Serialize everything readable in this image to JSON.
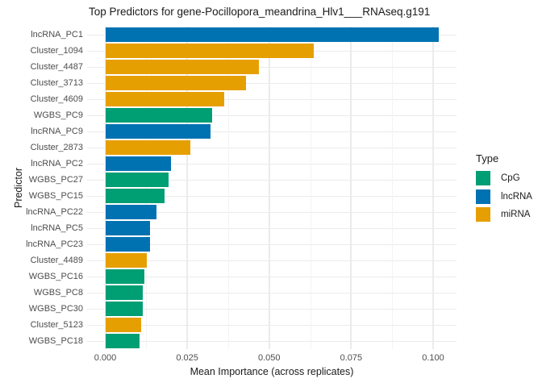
{
  "title": "Top Predictors for gene-Pocillopora_meandrina_Hlv1___RNAseq.g191",
  "chart_data": {
    "type": "bar",
    "orientation": "horizontal",
    "title": "Top Predictors for gene-Pocillopora_meandrina_Hlv1___RNAseq.g191",
    "xlabel": "Mean Importance (across replicates)",
    "ylabel": "Predictor",
    "xlim": [
      0,
      0.107
    ],
    "grid": true,
    "x_axis": {
      "ticks": [
        0.0,
        0.025,
        0.05,
        0.075,
        0.1
      ],
      "tick_labels": [
        "0.000",
        "0.025",
        "0.050",
        "0.075",
        "0.100"
      ],
      "minor_ticks": [
        0.0125,
        0.0375,
        0.0625,
        0.0875
      ]
    },
    "bars": [
      {
        "label": "lncRNA_PC1",
        "value": 0.1016,
        "type": "lncRNA"
      },
      {
        "label": "Cluster_1094",
        "value": 0.0637,
        "type": "miRNA"
      },
      {
        "label": "Cluster_4487",
        "value": 0.0469,
        "type": "miRNA"
      },
      {
        "label": "Cluster_3713",
        "value": 0.043,
        "type": "miRNA"
      },
      {
        "label": "Cluster_4609",
        "value": 0.0362,
        "type": "miRNA"
      },
      {
        "label": "WGBS_PC9",
        "value": 0.0327,
        "type": "CpG"
      },
      {
        "label": "lncRNA_PC9",
        "value": 0.0321,
        "type": "lncRNA"
      },
      {
        "label": "Cluster_2873",
        "value": 0.026,
        "type": "miRNA"
      },
      {
        "label": "lncRNA_PC2",
        "value": 0.02,
        "type": "lncRNA"
      },
      {
        "label": "WGBS_PC27",
        "value": 0.0193,
        "type": "CpG"
      },
      {
        "label": "WGBS_PC15",
        "value": 0.0182,
        "type": "CpG"
      },
      {
        "label": "lncRNA_PC22",
        "value": 0.0156,
        "type": "lncRNA"
      },
      {
        "label": "lncRNA_PC5",
        "value": 0.0137,
        "type": "lncRNA"
      },
      {
        "label": "lncRNA_PC23",
        "value": 0.0137,
        "type": "lncRNA"
      },
      {
        "label": "Cluster_4489",
        "value": 0.0127,
        "type": "miRNA"
      },
      {
        "label": "WGBS_PC16",
        "value": 0.0119,
        "type": "CpG"
      },
      {
        "label": "WGBS_PC8",
        "value": 0.0114,
        "type": "CpG"
      },
      {
        "label": "WGBS_PC30",
        "value": 0.0115,
        "type": "CpG"
      },
      {
        "label": "Cluster_5123",
        "value": 0.0109,
        "type": "miRNA"
      },
      {
        "label": "WGBS_PC18",
        "value": 0.0104,
        "type": "CpG"
      }
    ],
    "legend": {
      "title": "Type",
      "position": "right",
      "entries": [
        {
          "label": "CpG",
          "color": "#009E73"
        },
        {
          "label": "lncRNA",
          "color": "#0072B2"
        },
        {
          "label": "miRNA",
          "color": "#E69F00"
        }
      ]
    },
    "type_colors": {
      "CpG": "#009E73",
      "lncRNA": "#0072B2",
      "miRNA": "#E69F00"
    },
    "grid_colors": {
      "major": "#ebebeb",
      "minor": "#f3f3f3"
    }
  }
}
